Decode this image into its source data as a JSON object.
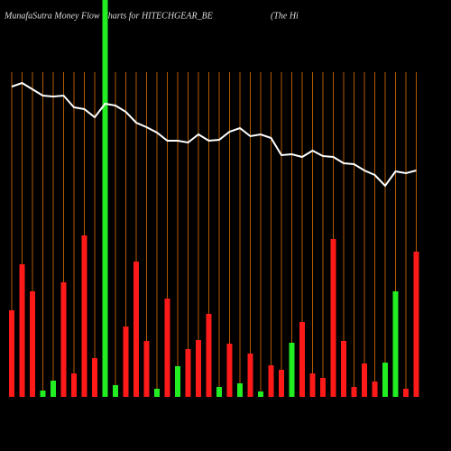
{
  "chart_data": {
    "type": "bar",
    "title": "MunafaSutra  Money Flow  Charts for HITECHGEAR_BE",
    "subtitle": "(The    Hi",
    "values": [
      96,
      147,
      117,
      7,
      18,
      127,
      26,
      179,
      43,
      440,
      13,
      78,
      150,
      62,
      9,
      109,
      34,
      53,
      63,
      92,
      11,
      59,
      15,
      48,
      6,
      35,
      30,
      60,
      83,
      26,
      21,
      175,
      62,
      11,
      37,
      17,
      38,
      117,
      9,
      161
    ],
    "colors": [
      "#ff1a1a",
      "#ff1a1a",
      "#ff1a1a",
      "#22ee22",
      "#22ee22",
      "#ff1a1a",
      "#ff1a1a",
      "#ff1a1a",
      "#ff1a1a",
      "#22ee22",
      "#22ee22",
      "#ff1a1a",
      "#ff1a1a",
      "#ff1a1a",
      "#22ee22",
      "#ff1a1a",
      "#22ee22",
      "#ff1a1a",
      "#ff1a1a",
      "#ff1a1a",
      "#22ee22",
      "#ff1a1a",
      "#22ee22",
      "#ff1a1a",
      "#22ee22",
      "#ff1a1a",
      "#ff1a1a",
      "#22ee22",
      "#ff1a1a",
      "#ff1a1a",
      "#ff1a1a",
      "#ff1a1a",
      "#ff1a1a",
      "#ff1a1a",
      "#ff1a1a",
      "#ff1a1a",
      "#22ee22",
      "#22ee22",
      "#ff1a1a",
      "#ff1a1a"
    ],
    "ylim": [
      0,
      440
    ],
    "line": {
      "color": "#ffffff",
      "values": [
        404,
        408,
        401,
        394,
        393,
        394,
        381,
        379,
        370,
        385,
        383,
        376,
        364,
        359,
        353,
        344,
        344,
        342,
        351,
        344,
        345,
        354,
        358,
        349,
        351,
        347,
        328,
        329,
        326,
        333,
        327,
        326,
        319,
        318,
        311,
        306,
        294,
        310,
        308,
        311
      ]
    },
    "y2lim": [
      0,
      500
    ],
    "grid": true,
    "grid_color": "#b35900"
  }
}
